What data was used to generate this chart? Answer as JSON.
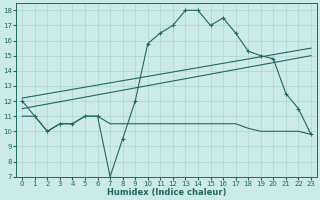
{
  "xlabel": "Humidex (Indice chaleur)",
  "bg_color": "#cceae7",
  "grid_color": "#aed4d0",
  "line_color": "#1a6b64",
  "xlim": [
    -0.5,
    23.5
  ],
  "ylim": [
    7,
    18.5
  ],
  "xticks": [
    0,
    1,
    2,
    3,
    4,
    5,
    6,
    7,
    8,
    9,
    10,
    11,
    12,
    13,
    14,
    15,
    16,
    17,
    18,
    19,
    20,
    21,
    22,
    23
  ],
  "yticks": [
    7,
    8,
    9,
    10,
    11,
    12,
    13,
    14,
    15,
    16,
    17,
    18
  ],
  "series_main": {
    "x": [
      0,
      1,
      2,
      3,
      4,
      5,
      6,
      7,
      8,
      9,
      10,
      11,
      12,
      13,
      14,
      15,
      16,
      17,
      18,
      19,
      20,
      21,
      22,
      23
    ],
    "y": [
      12,
      11,
      10,
      10.5,
      10.5,
      11,
      11,
      7,
      9.5,
      12,
      15.8,
      16.5,
      17,
      18,
      18,
      17,
      17.5,
      16.5,
      15.3,
      15,
      14.8,
      12.5,
      11.5,
      9.8
    ]
  },
  "series_flat": {
    "x": [
      0,
      1,
      2,
      3,
      4,
      5,
      6,
      7,
      8,
      9,
      10,
      11,
      12,
      13,
      14,
      15,
      16,
      17,
      18,
      19,
      20,
      21,
      22,
      23
    ],
    "y": [
      11,
      11,
      10,
      10.5,
      10.5,
      11,
      11,
      10.5,
      10.5,
      10.5,
      10.5,
      10.5,
      10.5,
      10.5,
      10.5,
      10.5,
      10.5,
      10.5,
      10.2,
      10.0,
      10.0,
      10.0,
      10.0,
      9.8
    ]
  },
  "series_diag1": {
    "x": [
      0,
      23
    ],
    "y": [
      11.5,
      15.0
    ]
  },
  "series_diag2": {
    "x": [
      0,
      23
    ],
    "y": [
      12.2,
      15.5
    ]
  }
}
